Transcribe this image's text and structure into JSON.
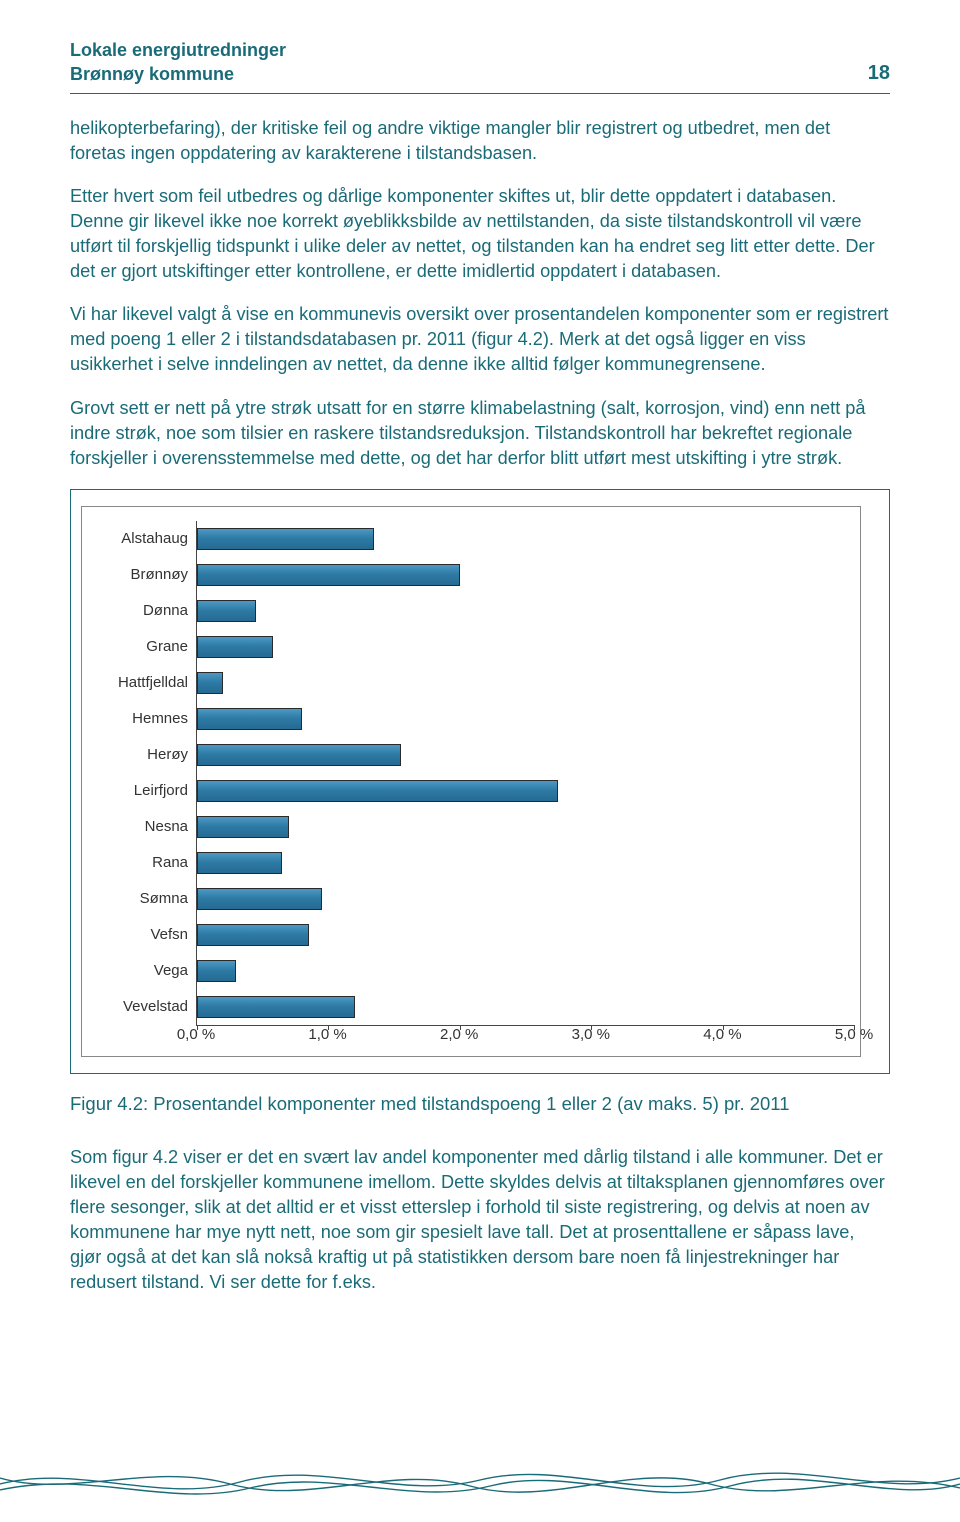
{
  "header": {
    "title_line1": "Lokale energiutredninger",
    "title_line2": "Brønnøy kommune",
    "page_number": "18"
  },
  "paragraphs": {
    "p1": "helikopterbefaring), der kritiske feil og andre viktige mangler blir registrert og utbedret, men det foretas ingen oppdatering av karakterene i tilstandsbasen.",
    "p2": "Etter hvert som feil utbedres og dårlige komponenter skiftes ut, blir dette oppdatert i databasen. Denne gir likevel ikke noe korrekt øyeblikksbilde av nettilstanden, da siste tilstandskontroll vil være utført til forskjellig tidspunkt i ulike deler av nettet, og tilstanden kan ha endret seg litt etter dette. Der det er gjort utskiftinger etter kontrollene, er dette imidlertid oppdatert i databasen.",
    "p3": "Vi har likevel valgt å vise en kommunevis oversikt over prosentandelen komponenter som er registrert med poeng 1 eller 2 i tilstandsdatabasen pr. 2011 (figur 4.2). Merk at det også ligger en viss usikkerhet i selve inndelingen av nettet, da denne ikke alltid følger kommune­grensene.",
    "p4": "Grovt sett er nett på ytre strøk utsatt for en større klimabelastning (salt, korrosjon, vind) enn nett på indre strøk, noe som tilsier en raskere tilstandsreduksjon. Tilstandskontroll har bekreftet regionale forskjeller i overensstemmelse med dette, og det har derfor blitt utført mest utskifting i ytre strøk.",
    "p5": "Som figur 4.2 viser er det en svært lav andel komponenter med dårlig tilstand i alle kommuner. Det er likevel en del forskjeller kommunene imellom. Dette skyldes delvis at tiltaksplanen gjennomføres over flere sesonger, slik at det alltid er et visst etterslep i forhold til siste registrering, og delvis at noen av kommunene har mye nytt nett, noe som gir spesielt lave tall. Det at prosenttallene er såpass lave, gjør også at det kan slå nokså kraftig ut på statistikken dersom bare noen få linjestrekninger har redusert tilstand. Vi ser dette for f.eks."
  },
  "chart": {
    "type": "bar-horizontal",
    "x_min": 0.0,
    "x_max": 5.0,
    "x_tick_step": 1.0,
    "x_tick_labels": [
      "0,0 %",
      "1,0 %",
      "2,0 %",
      "3,0 %",
      "4,0 %",
      "5,0 %"
    ],
    "bar_color": "#2e7ba6",
    "bar_border": "#2a2a2a",
    "axis_color": "#444444",
    "plot_border": "#888888",
    "label_color": "#333333",
    "label_fontsize": 15,
    "categories": [
      {
        "label": "Alstahaug",
        "value": 1.35
      },
      {
        "label": "Brønnøy",
        "value": 2.0
      },
      {
        "label": "Dønna",
        "value": 0.45
      },
      {
        "label": "Grane",
        "value": 0.58
      },
      {
        "label": "Hattfjelldal",
        "value": 0.2
      },
      {
        "label": "Hemnes",
        "value": 0.8
      },
      {
        "label": "Herøy",
        "value": 1.55
      },
      {
        "label": "Leirfjord",
        "value": 2.75
      },
      {
        "label": "Nesna",
        "value": 0.7
      },
      {
        "label": "Rana",
        "value": 0.65
      },
      {
        "label": "Sømna",
        "value": 0.95
      },
      {
        "label": "Vefsn",
        "value": 0.85
      },
      {
        "label": "Vega",
        "value": 0.3
      },
      {
        "label": "Vevelstad",
        "value": 1.2
      }
    ]
  },
  "caption": "Figur 4.2: Prosentandel komponenter med tilstandspoeng 1 eller 2 (av maks. 5) pr. 2011",
  "waves": {
    "stroke": "#1a6b78",
    "stroke_width": 1.4
  }
}
